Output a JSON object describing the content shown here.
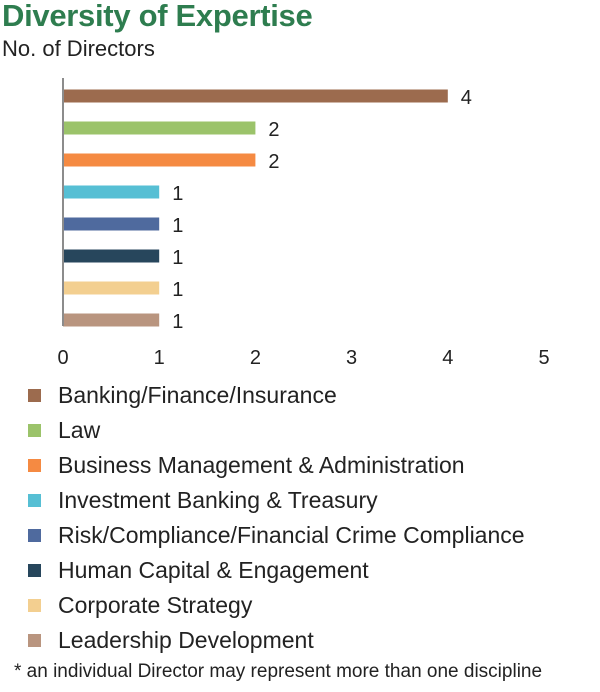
{
  "title": "Diversity of Expertise",
  "subtitle": "No. of Directors",
  "footnote": "* an individual Director may represent more than one discipline",
  "chart_data": {
    "type": "bar",
    "orientation": "horizontal",
    "categories": [
      "Banking/Finance/Insurance",
      "Law",
      "Business Management & Administration",
      "Investment Banking & Treasury",
      "Risk/Compliance/Financial Crime Compliance",
      "Human Capital & Engagement",
      "Corporate Strategy",
      "Leadership Development"
    ],
    "values": [
      4,
      2,
      2,
      1,
      1,
      1,
      1,
      1
    ],
    "colors": [
      "#9c6b4e",
      "#9bc36a",
      "#f58a42",
      "#56bfd4",
      "#4f6a9e",
      "#27465c",
      "#f3cf90",
      "#b9957f"
    ],
    "xlim": [
      0,
      5
    ],
    "xticks": [
      "0",
      "1",
      "2",
      "3",
      "4",
      "5"
    ],
    "data_labels": true,
    "grid": false,
    "legend_position": "bottom",
    "title": "Diversity of Expertise",
    "xlabel": "",
    "ylabel": "No. of Directors"
  }
}
